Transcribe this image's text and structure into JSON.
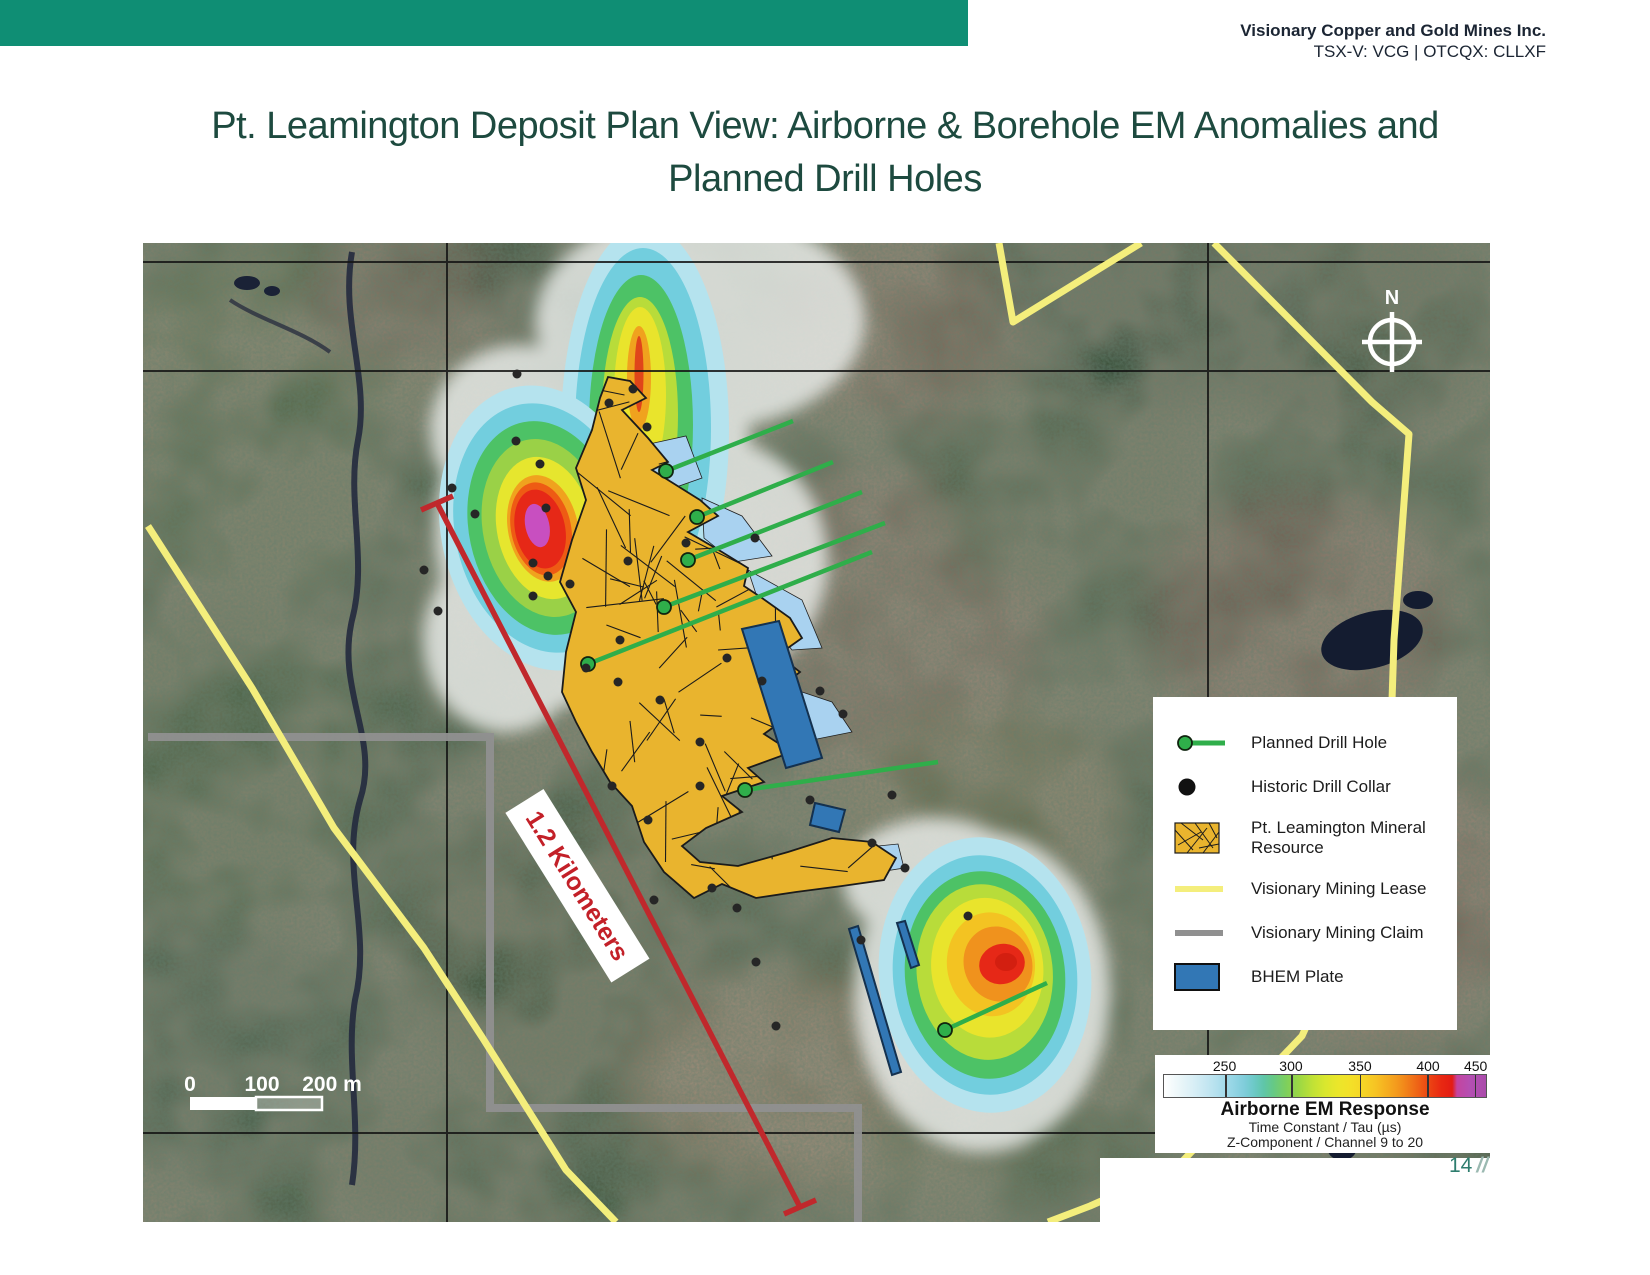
{
  "slide": {
    "company_line1": "Visionary Copper and Gold Mines Inc.",
    "company_line2": "TSX-V: VCG | OTCQX: CLLXF",
    "title_line1": "Pt. Leamington Deposit Plan View: Airborne & Borehole EM Anomalies and",
    "title_line2": "Planned Drill Holes",
    "page_number": "14",
    "page_slashes": "//",
    "header_bar_color": "#0f8e74",
    "title_color": "#1d4a3f"
  },
  "map": {
    "north_label": "N",
    "distance_label": "1.2 Kilometers",
    "scale_bar": {
      "tick0": "0",
      "tick100": "100",
      "tick200": "200 m"
    }
  },
  "legend": {
    "items": [
      {
        "id": "planned-drill-hole",
        "label": "Planned Drill Hole",
        "color": "#2fae4a"
      },
      {
        "id": "historic-drill-collar",
        "label": "Historic Drill Collar",
        "color": "#111111"
      },
      {
        "id": "mineral-resource",
        "label": "Pt. Leamington Mineral Resource",
        "color": "#e9b42e"
      },
      {
        "id": "mining-lease",
        "label": "Visionary Mining Lease",
        "color": "#f4ee7c"
      },
      {
        "id": "mining-claim",
        "label": "Visionary Mining Claim",
        "color": "#909090"
      },
      {
        "id": "bhem-plate",
        "label": "BHEM Plate",
        "color": "#3277b5"
      }
    ]
  },
  "colorbar": {
    "title": "Airborne EM Response",
    "subtitle1": "Time Constant / Tau (µs)",
    "subtitle2": "Z-Component / Channel 9 to 20",
    "ticks": [
      "250",
      "300",
      "350",
      "400",
      "450"
    ],
    "dimension_label_color": "#c32028"
  }
}
